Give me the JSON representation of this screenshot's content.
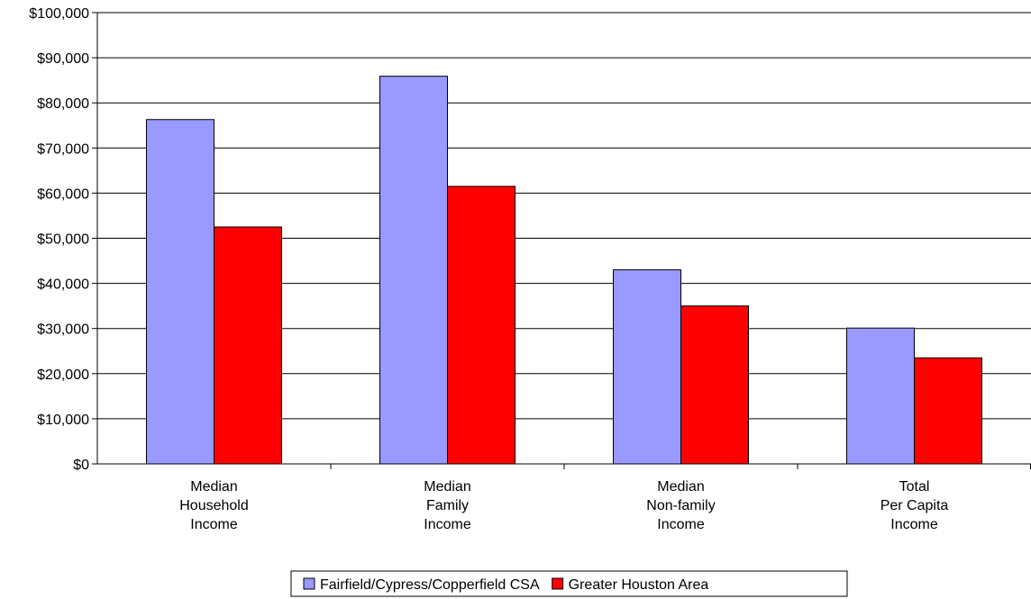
{
  "chart_data": {
    "type": "bar",
    "title": "",
    "xlabel": "",
    "ylabel": "",
    "categories": [
      [
        "Median",
        "Household",
        "Income"
      ],
      [
        "Median",
        "Family",
        "Income"
      ],
      [
        "Median",
        "Non-family",
        "Income"
      ],
      [
        "Total",
        "Per Capita",
        "Income"
      ]
    ],
    "series": [
      {
        "name": "Fairfield/Cypress/Copperfield CSA",
        "color": "#9999ff",
        "values": [
          76300,
          85900,
          43000,
          30100
        ]
      },
      {
        "name": "Greater Houston Area",
        "color": "#ff0000",
        "values": [
          52500,
          61500,
          35000,
          23500
        ]
      }
    ],
    "ylim": [
      0,
      100000
    ],
    "yticks": [
      0,
      10000,
      20000,
      30000,
      40000,
      50000,
      60000,
      70000,
      80000,
      90000,
      100000
    ],
    "ytick_labels": [
      "$0",
      "$10,000",
      "$20,000",
      "$30,000",
      "$40,000",
      "$50,000",
      "$60,000",
      "$70,000",
      "$80,000",
      "$90,000",
      "$100,000"
    ],
    "grid": true,
    "legend_position": "bottom"
  }
}
